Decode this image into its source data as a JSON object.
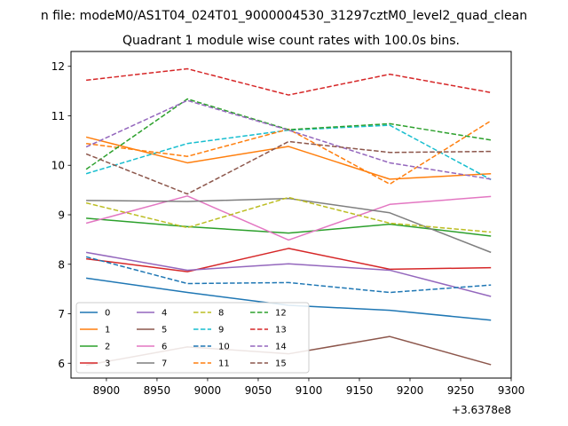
{
  "figure": {
    "suptitle": "n file: modeM0/AS1T04_024T01_9000004530_31297cztM0_level2_quad_clean",
    "title": "Quadrant 1 module wise count rates with 100.0s bins."
  },
  "chart_data": {
    "type": "line",
    "x_offset_label": "+3.6378e8",
    "x": [
      8880,
      8980,
      9080,
      9180,
      9280
    ],
    "xlim": [
      8865,
      9300
    ],
    "ylim": [
      5.7,
      12.3
    ],
    "xticks": [
      8900,
      8950,
      9000,
      9050,
      9100,
      9150,
      9200,
      9250,
      9300
    ],
    "yticks": [
      6,
      7,
      8,
      9,
      10,
      11,
      12
    ],
    "grid": false,
    "legend_position": "lower-left",
    "legend_columns": 4,
    "series": [
      {
        "name": "0",
        "color": "#1f77b4",
        "dash": "solid",
        "values": [
          7.72,
          7.43,
          7.17,
          7.07,
          6.87
        ]
      },
      {
        "name": "1",
        "color": "#ff7f0e",
        "dash": "solid",
        "values": [
          10.57,
          10.05,
          10.38,
          9.72,
          9.83
        ]
      },
      {
        "name": "2",
        "color": "#2ca02c",
        "dash": "solid",
        "values": [
          8.93,
          8.76,
          8.63,
          8.81,
          8.57
        ]
      },
      {
        "name": "3",
        "color": "#d62728",
        "dash": "solid",
        "values": [
          8.11,
          7.85,
          8.32,
          7.9,
          7.93
        ]
      },
      {
        "name": "4",
        "color": "#9467bd",
        "dash": "solid",
        "values": [
          8.24,
          7.88,
          8.01,
          7.88,
          7.35
        ]
      },
      {
        "name": "5",
        "color": "#8c564b",
        "dash": "solid",
        "values": [
          5.96,
          6.33,
          6.19,
          6.54,
          5.97
        ]
      },
      {
        "name": "6",
        "color": "#e377c2",
        "dash": "solid",
        "values": [
          8.83,
          9.38,
          8.49,
          9.21,
          9.37
        ]
      },
      {
        "name": "7",
        "color": "#7f7f7f",
        "dash": "solid",
        "values": [
          9.29,
          9.27,
          9.33,
          9.04,
          8.24
        ]
      },
      {
        "name": "8",
        "color": "#bcbd22",
        "dash": "dashed",
        "values": [
          9.24,
          8.74,
          9.35,
          8.83,
          8.65
        ]
      },
      {
        "name": "9",
        "color": "#17becf",
        "dash": "dashed",
        "values": [
          9.83,
          10.44,
          10.71,
          10.81,
          9.71
        ]
      },
      {
        "name": "10",
        "color": "#1f77b4",
        "dash": "dashed",
        "values": [
          8.15,
          7.61,
          7.63,
          7.43,
          7.58
        ]
      },
      {
        "name": "11",
        "color": "#ff7f0e",
        "dash": "dashed",
        "values": [
          10.44,
          10.18,
          10.73,
          9.62,
          10.9
        ]
      },
      {
        "name": "12",
        "color": "#2ca02c",
        "dash": "dashed",
        "values": [
          9.92,
          11.34,
          10.72,
          10.84,
          10.51
        ]
      },
      {
        "name": "13",
        "color": "#d62728",
        "dash": "dashed",
        "values": [
          11.72,
          11.95,
          11.42,
          11.84,
          11.47
        ]
      },
      {
        "name": "14",
        "color": "#9467bd",
        "dash": "dashed",
        "values": [
          10.37,
          11.31,
          10.71,
          10.05,
          9.72
        ]
      },
      {
        "name": "15",
        "color": "#8c564b",
        "dash": "dashed",
        "values": [
          10.23,
          9.42,
          10.48,
          10.26,
          10.28
        ]
      }
    ]
  }
}
